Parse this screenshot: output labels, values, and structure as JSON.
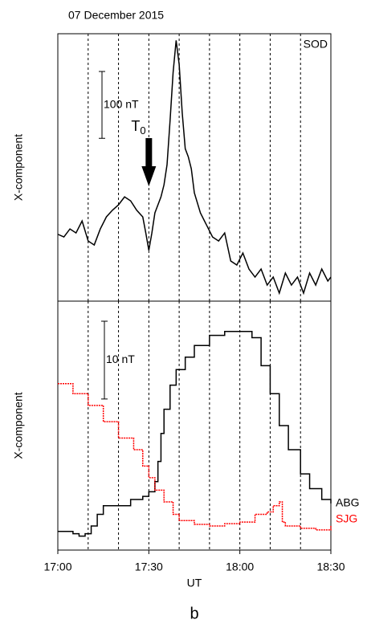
{
  "chart_data": [
    {
      "type": "line",
      "title": "07 December 2015",
      "ylabel": "X-component",
      "xlim": [
        0,
        90
      ],
      "ylim": [
        0,
        400
      ],
      "xgrid": [
        10,
        20,
        30,
        40,
        50,
        60,
        70,
        80
      ],
      "scale_bar": {
        "label": "100 nT",
        "value": 100
      },
      "annotation": {
        "text": "T",
        "subscript": "0",
        "x": 30
      },
      "series": [
        {
          "name": "SOD",
          "color": "#000000",
          "x": [
            0,
            2,
            4,
            6,
            8,
            10,
            12,
            14,
            16,
            18,
            20,
            22,
            24,
            26,
            28,
            29,
            30,
            31,
            32,
            34,
            35,
            36,
            37,
            38,
            39,
            40,
            41,
            42,
            43,
            44,
            45,
            47,
            49,
            51,
            53,
            55,
            57,
            59,
            61,
            63,
            65,
            67,
            69,
            71,
            73,
            75,
            77,
            79,
            81,
            83,
            85,
            87,
            89,
            90
          ],
          "values": [
            100,
            96,
            108,
            102,
            120,
            90,
            84,
            108,
            126,
            136,
            144,
            156,
            150,
            136,
            126,
            102,
            76,
            102,
            132,
            156,
            174,
            204,
            270,
            342,
            390,
            354,
            282,
            228,
            216,
            198,
            162,
            132,
            114,
            96,
            90,
            102,
            60,
            54,
            72,
            48,
            36,
            48,
            24,
            36,
            12,
            42,
            24,
            36,
            12,
            42,
            24,
            48,
            30,
            36
          ]
        }
      ]
    },
    {
      "type": "line",
      "step": true,
      "ylabel": "X-component",
      "xlabel": "UT",
      "caption": "b",
      "xlim": [
        0,
        90
      ],
      "ylim": [
        0,
        32
      ],
      "xgrid": [
        10,
        20,
        30,
        40,
        50,
        60,
        70,
        80
      ],
      "xticks": [
        {
          "value": 0,
          "label": "17:00"
        },
        {
          "value": 30,
          "label": "17:30"
        },
        {
          "value": 60,
          "label": "18:00"
        },
        {
          "value": 90,
          "label": "18:30"
        }
      ],
      "scale_bar": {
        "label": "10 nT",
        "value": 10
      },
      "series": [
        {
          "name": "ABG",
          "color": "#000000",
          "x": [
            0,
            5,
            7,
            9,
            11,
            13,
            15,
            20,
            24,
            28,
            30,
            32,
            33,
            34,
            35,
            37,
            39,
            42,
            45,
            50,
            55,
            60,
            64,
            67,
            70,
            73,
            76,
            80,
            83,
            87,
            90
          ],
          "values": [
            2.4,
            2.1,
            1.8,
            2.1,
            3.1,
            4.6,
            5.7,
            5.7,
            6.5,
            6.9,
            7.5,
            8.8,
            11.4,
            15.0,
            18.1,
            21.2,
            23.2,
            24.8,
            26.3,
            27.6,
            28.1,
            28.1,
            27.3,
            23.7,
            20.1,
            16.0,
            12.9,
            9.8,
            7.9,
            6.5,
            6.0
          ]
        },
        {
          "name": "SJG",
          "color": "#ff0000",
          "x": [
            0,
            5,
            10,
            15,
            20,
            25,
            28,
            30,
            32,
            35,
            38,
            40,
            45,
            50,
            55,
            60,
            65,
            69,
            71,
            73,
            74,
            75,
            80,
            85,
            90
          ],
          "values": [
            21.4,
            20.1,
            18.6,
            16.5,
            14.4,
            12.9,
            10.8,
            9.3,
            7.7,
            6.2,
            4.6,
            3.8,
            3.3,
            3.1,
            3.4,
            3.6,
            4.6,
            4.9,
            5.7,
            6.2,
            3.6,
            3.1,
            2.8,
            2.6,
            3.1
          ]
        }
      ]
    }
  ]
}
